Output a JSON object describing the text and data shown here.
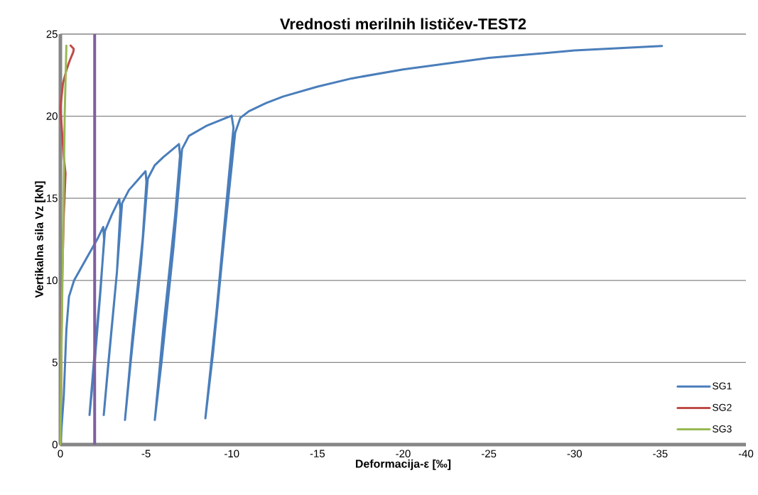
{
  "chart_data": {
    "type": "line",
    "title": "Vrednosti merilnih lističev-TEST2",
    "xlabel": "Deformacija-ε [‰]",
    "ylabel": "Vertikalna sila Vz [kN]",
    "xlim": [
      0,
      -40
    ],
    "ylim": [
      0,
      25
    ],
    "xticks": [
      0,
      -5,
      -10,
      -15,
      -20,
      -25,
      -30,
      -35,
      -40
    ],
    "yticks": [
      0,
      5,
      10,
      15,
      20,
      25
    ],
    "grid": "y",
    "legend": "bottom right",
    "marker": "none",
    "line_style": "solid",
    "ref_lines": [
      {
        "axis": "x",
        "value": -2,
        "color": "#7f5fa0"
      }
    ],
    "series": [
      {
        "name": "SG1",
        "color": "#4a7ebb",
        "x": [
          0,
          -0.2,
          -0.35,
          -0.5,
          -0.8,
          -1.5,
          -2.2,
          -2.5,
          -2.55,
          -2.35,
          -2.0,
          -1.7,
          -1.95,
          -2.3,
          -2.6,
          -3.0,
          -3.44,
          -3.5,
          -3.3,
          -2.9,
          -2.53,
          -2.8,
          -3.3,
          -3.6,
          -4.0,
          -4.97,
          -5.02,
          -4.8,
          -4.2,
          -3.77,
          -4.1,
          -4.7,
          -5.1,
          -5.5,
          -6.0,
          -6.92,
          -6.98,
          -6.7,
          -6.0,
          -5.51,
          -5.9,
          -6.6,
          -7.1,
          -7.5,
          -8.5,
          -9.99,
          -10.1,
          -9.8,
          -9.1,
          -8.46,
          -8.9,
          -9.6,
          -10.2,
          -10.5,
          -11.0,
          -12.0,
          -13.0,
          -15.0,
          -17.0,
          -20.0,
          -25.0,
          -30.0,
          -35.1
        ],
        "values": [
          0,
          3,
          7,
          9,
          10,
          11.3,
          12.6,
          13.25,
          12.5,
          9.5,
          5,
          1.8,
          5,
          9,
          13.0,
          14.0,
          14.95,
          14.3,
          10.5,
          6,
          1.8,
          5,
          10.5,
          14.7,
          15.5,
          16.65,
          16.0,
          12.5,
          6.5,
          1.5,
          5,
          11,
          16.2,
          17.0,
          17.5,
          18.3,
          17.6,
          14,
          7,
          1.5,
          5,
          12,
          18.0,
          18.8,
          19.4,
          20.03,
          19.3,
          16,
          8,
          1.6,
          5.5,
          13,
          19.0,
          19.9,
          20.3,
          20.8,
          21.2,
          21.8,
          22.3,
          22.85,
          23.55,
          24.0,
          24.27
        ]
      },
      {
        "name": "SG2",
        "color": "#be4b48",
        "x": [
          0,
          -0.05,
          -0.1,
          -0.2,
          -0.3,
          -0.2,
          -0.1,
          0,
          -0.15,
          -0.35,
          -0.55,
          -0.75,
          -0.78,
          -0.6
        ],
        "values": [
          0,
          5,
          10,
          14,
          16.5,
          17.5,
          19,
          20.5,
          22,
          22.8,
          23.4,
          23.9,
          24.1,
          24.3
        ]
      },
      {
        "name": "SG3",
        "color": "#98b954",
        "x": [
          0,
          -0.05,
          -0.15,
          -0.25,
          -0.35
        ],
        "values": [
          0,
          5,
          12,
          20,
          24.3
        ]
      }
    ]
  }
}
